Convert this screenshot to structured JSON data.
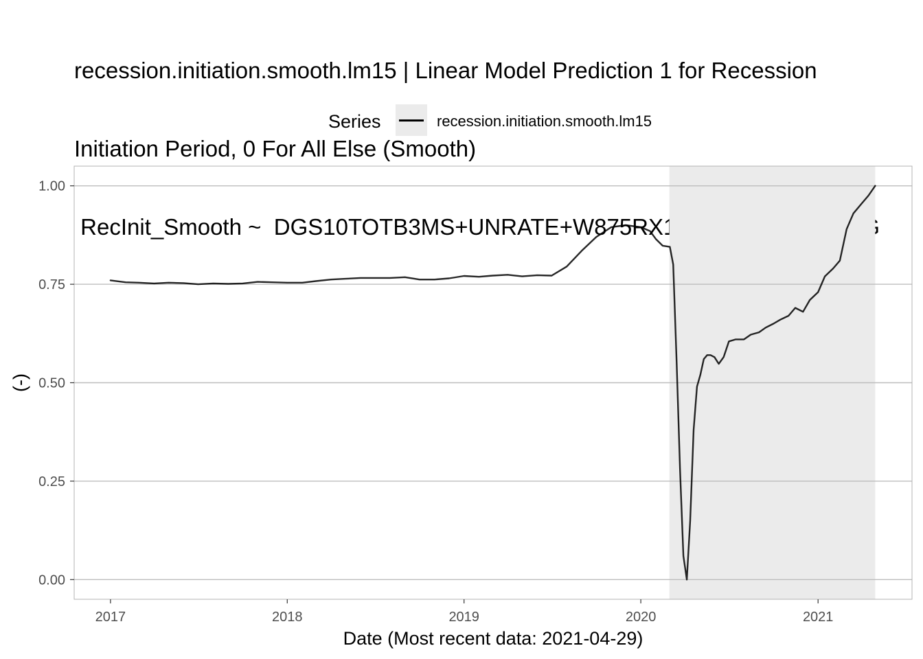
{
  "chart_data": {
    "type": "line",
    "title_lines": [
      "recession.initiation.smooth.lm15 | Linear Model Prediction 1 for Recession",
      "Initiation Period, 0 For All Else (Smooth)",
      " RecInit_Smooth ~  DGS10TOTB3MS+UNRATE+W875RX1_YoY+ICSA_YoY+G"
    ],
    "legend": {
      "title": "Series",
      "position": "top"
    },
    "xlabel": "Date (Most recent data: 2021-04-29)",
    "ylabel": "(-)",
    "xlim": [
      "2016-10-18",
      "2021-07-14"
    ],
    "ylim": [
      -0.05,
      1.05
    ],
    "x_ticks": [
      "2017-01-01",
      "2018-01-01",
      "2019-01-01",
      "2020-01-01",
      "2021-01-01"
    ],
    "x_tick_labels": [
      "2017",
      "2018",
      "2019",
      "2020",
      "2021"
    ],
    "y_ticks": [
      0.0,
      0.25,
      0.5,
      0.75,
      1.0
    ],
    "y_tick_labels": [
      "0.00",
      "0.25",
      "0.50",
      "0.75",
      "1.00"
    ],
    "grid": "horizontal major lines",
    "recession_shading": [
      {
        "start": "2020-02-29",
        "end": "2021-04-29",
        "color": "#ebebeb"
      }
    ],
    "series": [
      {
        "name": "recession.initiation.smooth.lm15",
        "color": "#000000",
        "x": [
          "2017-01-01",
          "2017-02-01",
          "2017-03-01",
          "2017-04-01",
          "2017-05-01",
          "2017-06-01",
          "2017-07-01",
          "2017-08-01",
          "2017-09-01",
          "2017-10-01",
          "2017-11-01",
          "2017-12-01",
          "2018-01-01",
          "2018-02-01",
          "2018-03-01",
          "2018-04-01",
          "2018-05-01",
          "2018-06-01",
          "2018-07-01",
          "2018-08-01",
          "2018-09-01",
          "2018-10-01",
          "2018-11-01",
          "2018-12-01",
          "2019-01-01",
          "2019-02-01",
          "2019-03-01",
          "2019-04-01",
          "2019-05-01",
          "2019-06-01",
          "2019-07-01",
          "2019-08-01",
          "2019-09-01",
          "2019-10-01",
          "2019-11-01",
          "2019-12-01",
          "2020-01-01",
          "2020-01-20",
          "2020-02-01",
          "2020-02-15",
          "2020-03-01",
          "2020-03-08",
          "2020-03-15",
          "2020-03-22",
          "2020-03-29",
          "2020-04-05",
          "2020-04-12",
          "2020-04-19",
          "2020-04-26",
          "2020-05-03",
          "2020-05-10",
          "2020-05-17",
          "2020-05-24",
          "2020-06-01",
          "2020-06-10",
          "2020-06-20",
          "2020-07-01",
          "2020-07-15",
          "2020-08-01",
          "2020-08-15",
          "2020-09-01",
          "2020-09-15",
          "2020-10-01",
          "2020-10-15",
          "2020-11-01",
          "2020-11-15",
          "2020-12-01",
          "2020-12-15",
          "2021-01-01",
          "2021-01-15",
          "2021-02-01",
          "2021-02-15",
          "2021-03-01",
          "2021-03-08",
          "2021-03-15",
          "2021-04-01",
          "2021-04-15",
          "2021-04-29"
        ],
        "values": [
          0.76,
          0.755,
          0.754,
          0.752,
          0.754,
          0.753,
          0.75,
          0.752,
          0.751,
          0.752,
          0.756,
          0.755,
          0.754,
          0.754,
          0.758,
          0.762,
          0.764,
          0.766,
          0.766,
          0.766,
          0.768,
          0.762,
          0.762,
          0.765,
          0.771,
          0.769,
          0.772,
          0.774,
          0.77,
          0.773,
          0.772,
          0.795,
          0.835,
          0.87,
          0.895,
          0.9,
          0.895,
          0.885,
          0.865,
          0.848,
          0.845,
          0.8,
          0.55,
          0.28,
          0.06,
          0.0,
          0.15,
          0.38,
          0.49,
          0.52,
          0.56,
          0.57,
          0.57,
          0.565,
          0.548,
          0.565,
          0.605,
          0.61,
          0.61,
          0.622,
          0.628,
          0.64,
          0.65,
          0.66,
          0.67,
          0.69,
          0.68,
          0.71,
          0.73,
          0.77,
          0.79,
          0.81,
          0.89,
          0.91,
          0.93,
          0.955,
          0.975,
          1.0
        ]
      }
    ]
  }
}
